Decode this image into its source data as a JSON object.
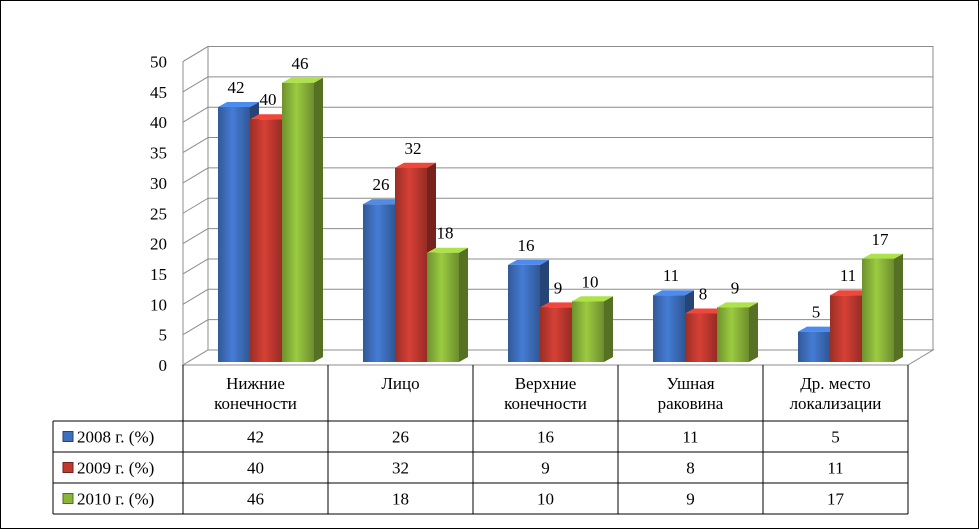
{
  "chart_data": {
    "type": "bar",
    "title": "",
    "xlabel": "",
    "ylabel": "",
    "ylim": [
      0,
      50
    ],
    "yticks": [
      0,
      5,
      10,
      15,
      20,
      25,
      30,
      35,
      40,
      45,
      50
    ],
    "grid": true,
    "legend_placement": "in-table",
    "categories": [
      [
        "Нижние",
        "конечности"
      ],
      [
        "Лицо"
      ],
      [
        "Верхние",
        "конечности"
      ],
      [
        "Ушная",
        "раковина"
      ],
      [
        "Др. место",
        "локализации"
      ]
    ],
    "series": [
      {
        "name": "2008 г. (%)",
        "color": "#3e6fbe",
        "values": [
          42,
          26,
          16,
          11,
          5
        ]
      },
      {
        "name": "2009 г. (%)",
        "color": "#c0392f",
        "values": [
          40,
          32,
          9,
          8,
          11
        ]
      },
      {
        "name": "2010 г. (%)",
        "color": "#8ab53a",
        "values": [
          46,
          18,
          10,
          9,
          17
        ]
      }
    ]
  }
}
